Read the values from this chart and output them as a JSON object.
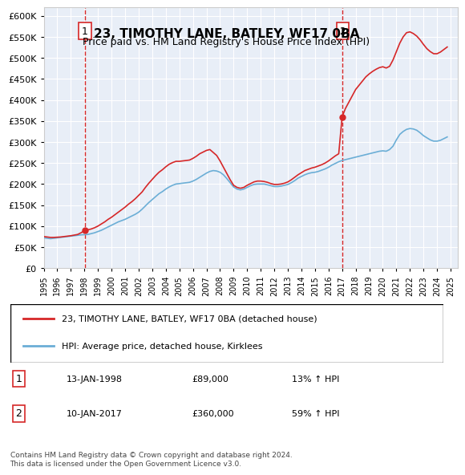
{
  "title": "23, TIMOTHY LANE, BATLEY, WF17 0BA",
  "subtitle": "Price paid vs. HM Land Registry's House Price Index (HPI)",
  "legend_line1": "23, TIMOTHY LANE, BATLEY, WF17 0BA (detached house)",
  "legend_line2": "HPI: Average price, detached house, Kirklees",
  "annotation1_label": "1",
  "annotation1_date": "13-JAN-1998",
  "annotation1_price": "£89,000",
  "annotation1_hpi": "13% ↑ HPI",
  "annotation2_label": "2",
  "annotation2_date": "10-JAN-2017",
  "annotation2_price": "£360,000",
  "annotation2_hpi": "59% ↑ HPI",
  "footer": "Contains HM Land Registry data © Crown copyright and database right 2024.\nThis data is licensed under the Open Government Licence v3.0.",
  "sale1_x": 1998.04,
  "sale1_y": 89000,
  "sale2_x": 2017.03,
  "sale2_y": 360000,
  "vline1_x": 1998.04,
  "vline2_x": 2017.03,
  "hpi_color": "#6baed6",
  "price_color": "#d62728",
  "vline_color": "#d62728",
  "background_color": "#e8eef7",
  "ylim": [
    0,
    620000
  ],
  "xlim_start": 1995.0,
  "xlim_end": 2025.5,
  "yticks": [
    0,
    50000,
    100000,
    150000,
    200000,
    250000,
    300000,
    350000,
    400000,
    450000,
    500000,
    550000,
    600000
  ],
  "xticks": [
    1995,
    1996,
    1997,
    1998,
    1999,
    2000,
    2001,
    2002,
    2003,
    2004,
    2005,
    2006,
    2007,
    2008,
    2009,
    2010,
    2011,
    2012,
    2013,
    2014,
    2015,
    2016,
    2017,
    2018,
    2019,
    2020,
    2021,
    2022,
    2023,
    2024,
    2025
  ],
  "hpi_data": {
    "x": [
      1995.0,
      1995.25,
      1995.5,
      1995.75,
      1996.0,
      1996.25,
      1996.5,
      1996.75,
      1997.0,
      1997.25,
      1997.5,
      1997.75,
      1998.0,
      1998.25,
      1998.5,
      1998.75,
      1999.0,
      1999.25,
      1999.5,
      1999.75,
      2000.0,
      2000.25,
      2000.5,
      2000.75,
      2001.0,
      2001.25,
      2001.5,
      2001.75,
      2002.0,
      2002.25,
      2002.5,
      2002.75,
      2003.0,
      2003.25,
      2003.5,
      2003.75,
      2004.0,
      2004.25,
      2004.5,
      2004.75,
      2005.0,
      2005.25,
      2005.5,
      2005.75,
      2006.0,
      2006.25,
      2006.5,
      2006.75,
      2007.0,
      2007.25,
      2007.5,
      2007.75,
      2008.0,
      2008.25,
      2008.5,
      2008.75,
      2009.0,
      2009.25,
      2009.5,
      2009.75,
      2010.0,
      2010.25,
      2010.5,
      2010.75,
      2011.0,
      2011.25,
      2011.5,
      2011.75,
      2012.0,
      2012.25,
      2012.5,
      2012.75,
      2013.0,
      2013.25,
      2013.5,
      2013.75,
      2014.0,
      2014.25,
      2014.5,
      2014.75,
      2015.0,
      2015.25,
      2015.5,
      2015.75,
      2016.0,
      2016.25,
      2016.5,
      2016.75,
      2017.0,
      2017.25,
      2017.5,
      2017.75,
      2018.0,
      2018.25,
      2018.5,
      2018.75,
      2019.0,
      2019.25,
      2019.5,
      2019.75,
      2020.0,
      2020.25,
      2020.5,
      2020.75,
      2021.0,
      2021.25,
      2021.5,
      2021.75,
      2022.0,
      2022.25,
      2022.5,
      2022.75,
      2023.0,
      2023.25,
      2023.5,
      2023.75,
      2024.0,
      2024.25,
      2024.5,
      2024.75
    ],
    "y": [
      72000,
      71000,
      70000,
      71000,
      72000,
      73000,
      74000,
      75000,
      76000,
      77000,
      78000,
      79000,
      79500,
      80000,
      82000,
      84000,
      87000,
      90000,
      94000,
      98000,
      102000,
      106000,
      110000,
      113000,
      116000,
      120000,
      124000,
      128000,
      133000,
      140000,
      148000,
      156000,
      163000,
      170000,
      177000,
      182000,
      188000,
      193000,
      197000,
      200000,
      201000,
      202000,
      203000,
      204000,
      207000,
      211000,
      216000,
      221000,
      226000,
      230000,
      232000,
      231000,
      228000,
      222000,
      213000,
      203000,
      193000,
      188000,
      186000,
      188000,
      192000,
      196000,
      199000,
      200000,
      200000,
      200000,
      198000,
      196000,
      194000,
      194000,
      195000,
      197000,
      199000,
      203000,
      208000,
      214000,
      218000,
      222000,
      225000,
      227000,
      228000,
      230000,
      233000,
      236000,
      240000,
      245000,
      249000,
      253000,
      256000,
      258000,
      260000,
      262000,
      264000,
      266000,
      268000,
      270000,
      272000,
      274000,
      276000,
      278000,
      279000,
      278000,
      282000,
      290000,
      305000,
      318000,
      325000,
      330000,
      332000,
      331000,
      328000,
      322000,
      315000,
      310000,
      305000,
      302000,
      302000,
      304000,
      308000,
      312000
    ]
  },
  "price_data": {
    "x": [
      1995.0,
      1995.25,
      1995.5,
      1995.75,
      1996.0,
      1996.25,
      1996.5,
      1996.75,
      1997.0,
      1997.25,
      1997.5,
      1997.75,
      1998.0,
      1998.25,
      1998.5,
      1998.75,
      1999.0,
      1999.25,
      1999.5,
      1999.75,
      2000.0,
      2000.25,
      2000.5,
      2000.75,
      2001.0,
      2001.25,
      2001.5,
      2001.75,
      2002.0,
      2002.25,
      2002.5,
      2002.75,
      2003.0,
      2003.25,
      2003.5,
      2003.75,
      2004.0,
      2004.25,
      2004.5,
      2004.75,
      2005.0,
      2005.25,
      2005.5,
      2005.75,
      2006.0,
      2006.25,
      2006.5,
      2006.75,
      2007.0,
      2007.25,
      2007.5,
      2007.75,
      2008.0,
      2008.25,
      2008.5,
      2008.75,
      2009.0,
      2009.25,
      2009.5,
      2009.75,
      2010.0,
      2010.25,
      2010.5,
      2010.75,
      2011.0,
      2011.25,
      2011.5,
      2011.75,
      2012.0,
      2012.25,
      2012.5,
      2012.75,
      2013.0,
      2013.25,
      2013.5,
      2013.75,
      2014.0,
      2014.25,
      2014.5,
      2014.75,
      2015.0,
      2015.25,
      2015.5,
      2015.75,
      2016.0,
      2016.25,
      2016.5,
      2016.75,
      2017.0,
      2017.25,
      2017.5,
      2017.75,
      2018.0,
      2018.25,
      2018.5,
      2018.75,
      2019.0,
      2019.25,
      2019.5,
      2019.75,
      2020.0,
      2020.25,
      2020.5,
      2020.75,
      2021.0,
      2021.25,
      2021.5,
      2021.75,
      2022.0,
      2022.25,
      2022.5,
      2022.75,
      2023.0,
      2023.25,
      2023.5,
      2023.75,
      2024.0,
      2024.25,
      2024.5,
      2024.75
    ],
    "y": [
      75000,
      74000,
      73000,
      73000,
      73500,
      74000,
      75000,
      76000,
      77000,
      78500,
      80000,
      84000,
      89000,
      91000,
      93000,
      96000,
      100000,
      105000,
      110000,
      116000,
      121000,
      127000,
      133000,
      139000,
      145000,
      152000,
      158000,
      165000,
      173000,
      181000,
      192000,
      202000,
      211000,
      220000,
      228000,
      234000,
      241000,
      247000,
      251000,
      254000,
      254000,
      255000,
      256000,
      257000,
      261000,
      266000,
      272000,
      276000,
      280000,
      282000,
      275000,
      268000,
      255000,
      240000,
      225000,
      210000,
      197000,
      192000,
      190000,
      192000,
      197000,
      201000,
      205000,
      207000,
      207000,
      206000,
      204000,
      201000,
      199000,
      199000,
      200000,
      202000,
      205000,
      210000,
      216000,
      222000,
      227000,
      232000,
      235000,
      238000,
      240000,
      243000,
      246000,
      250000,
      255000,
      261000,
      267000,
      272000,
      360000,
      380000,
      395000,
      410000,
      425000,
      435000,
      445000,
      455000,
      462000,
      468000,
      473000,
      477000,
      479000,
      476000,
      480000,
      495000,
      515000,
      535000,
      550000,
      560000,
      562000,
      558000,
      552000,
      543000,
      532000,
      522000,
      515000,
      510000,
      510000,
      514000,
      520000,
      526000
    ]
  }
}
